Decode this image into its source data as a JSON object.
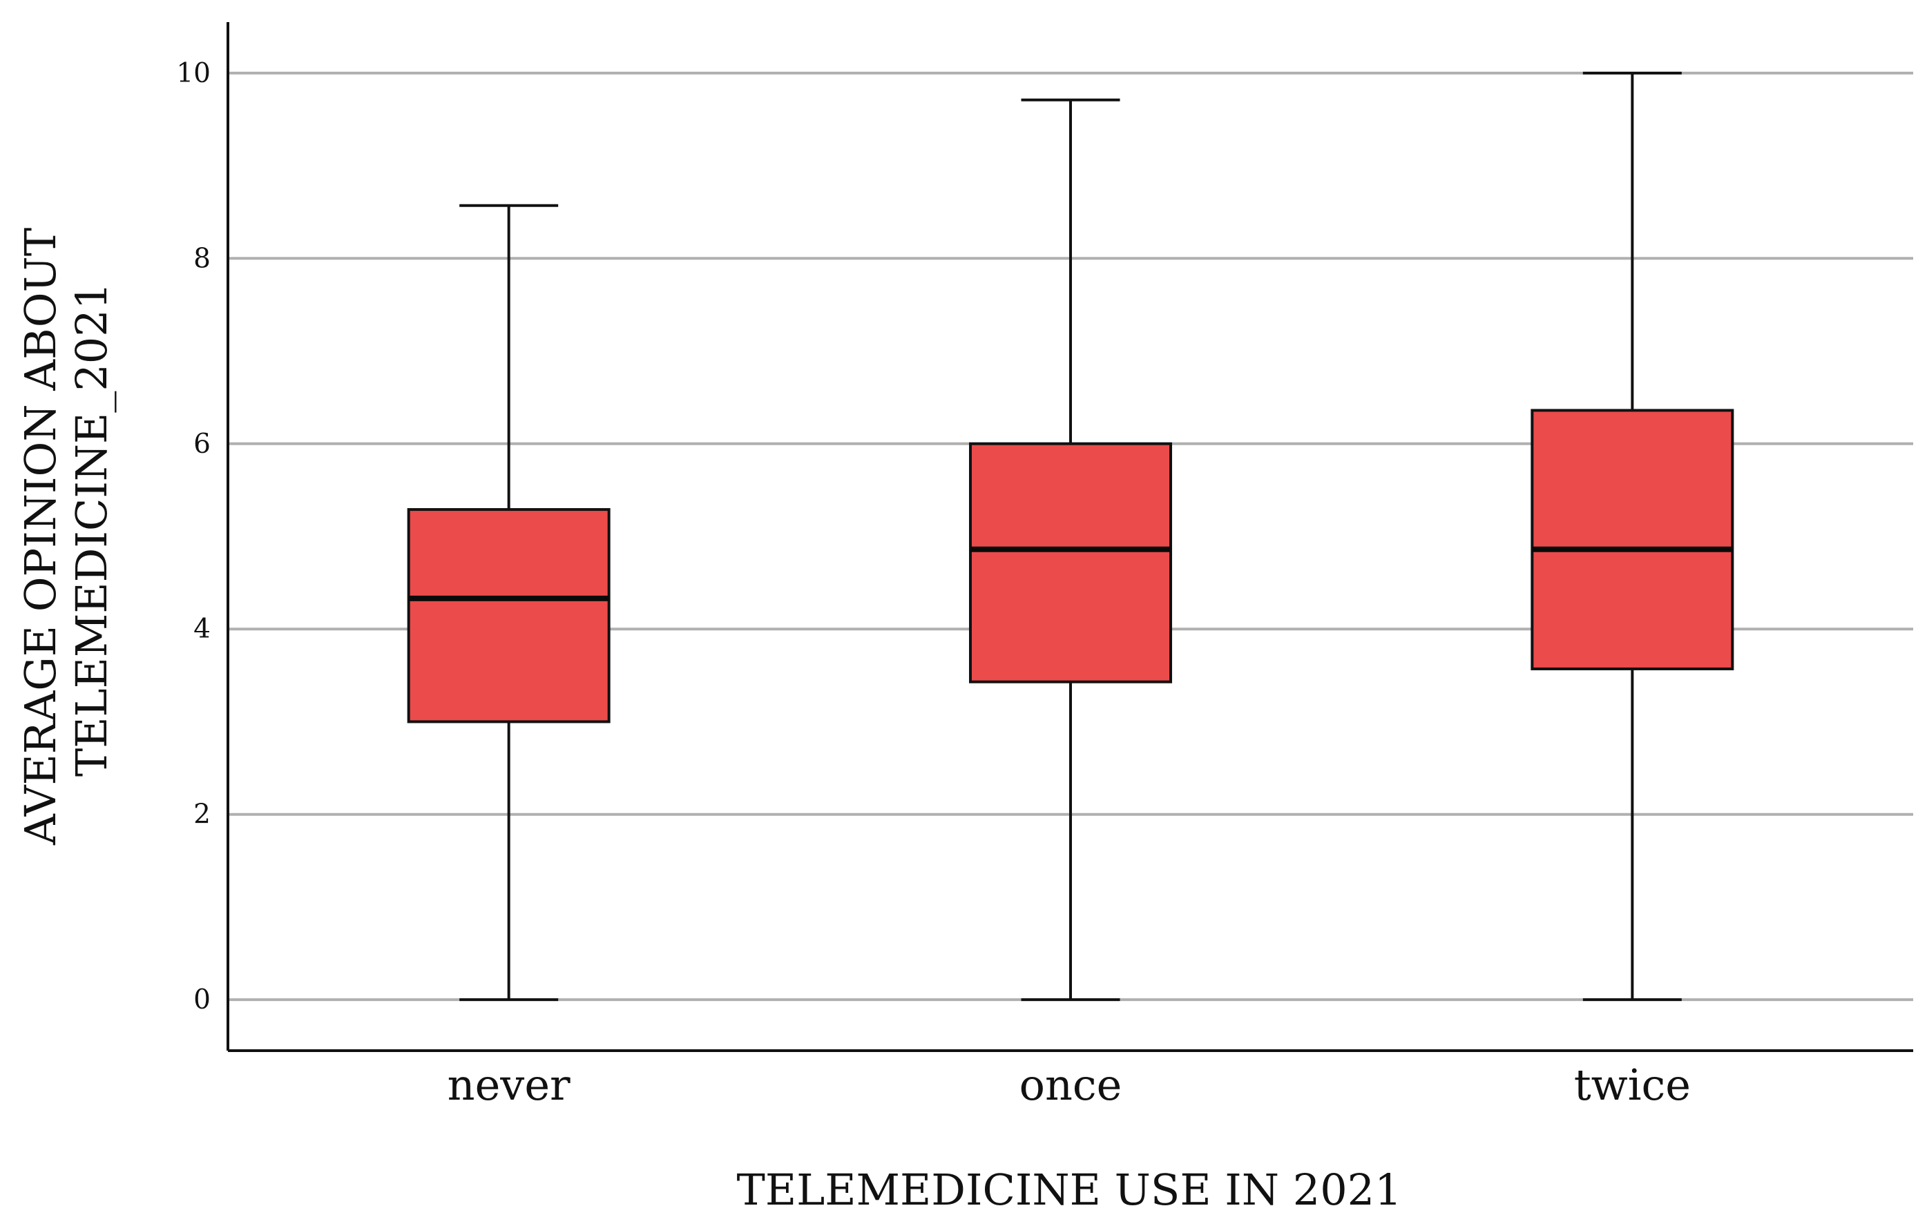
{
  "chart_data": {
    "type": "boxplot",
    "xlabel": "TELEMEDICINE USE IN 2021",
    "ylabel_lines": [
      "AVERAGE OPINION ABOUT",
      "TELEMEDICINE_2021"
    ],
    "ylim": [
      -0.55,
      10.55
    ],
    "yticks": [
      0,
      2,
      4,
      6,
      8,
      10
    ],
    "grid": true,
    "categories": [
      "never",
      "once",
      "twice"
    ],
    "boxes": [
      {
        "category": "never",
        "min": 0,
        "q1": 3.0,
        "median": 4.33,
        "q3": 5.29,
        "max": 8.57
      },
      {
        "category": "once",
        "min": 0,
        "q1": 3.43,
        "median": 4.86,
        "q3": 6.0,
        "max": 9.71
      },
      {
        "category": "twice",
        "min": 0,
        "q1": 3.57,
        "median": 4.86,
        "q3": 6.36,
        "max": 10.0
      }
    ],
    "colors": {
      "box_fill": "#eb4b4b",
      "box_stroke": "#111111",
      "median": "#0a0a0a",
      "whisker": "#111111",
      "grid": "#b0b0b0",
      "axis": "#111111"
    }
  }
}
